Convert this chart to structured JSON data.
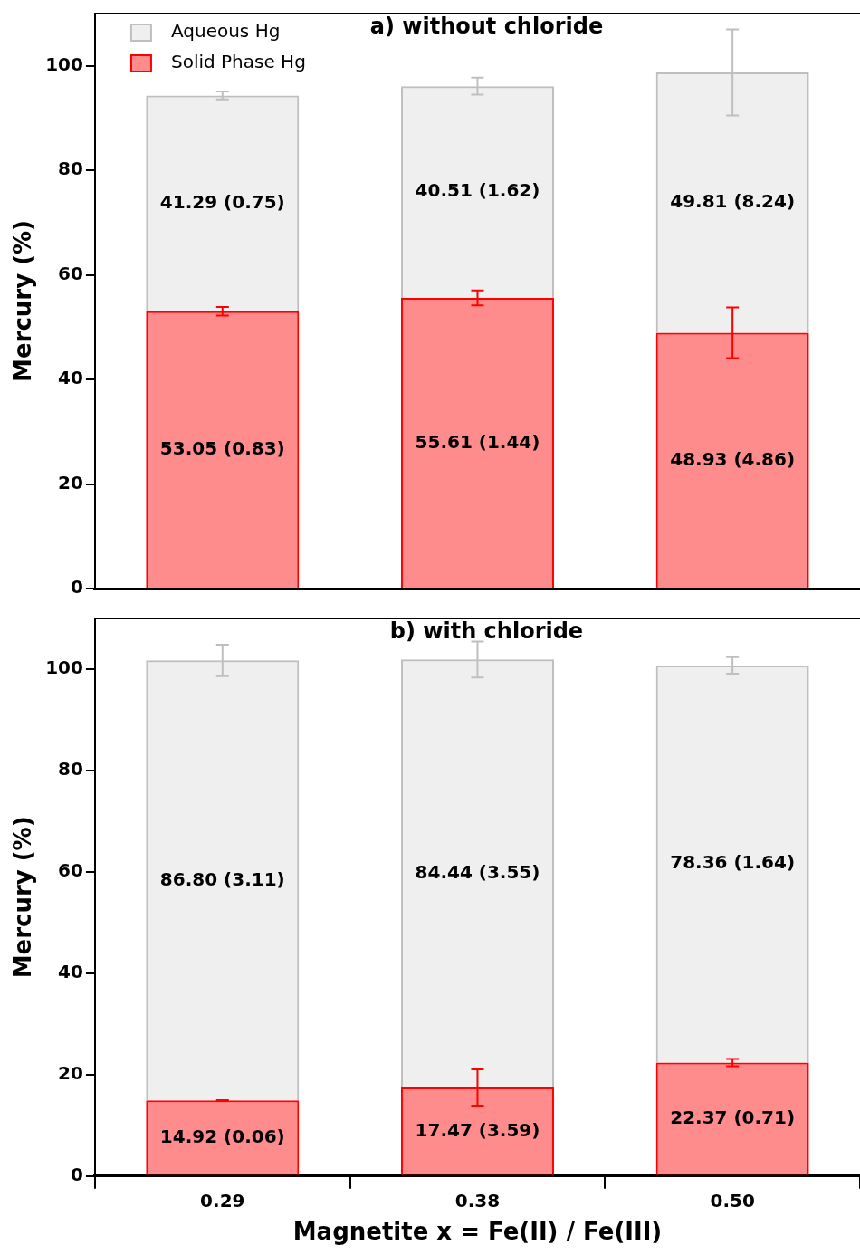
{
  "chart_data": [
    {
      "type": "bar",
      "stacked": true,
      "title": "a) without chloride",
      "ylabel": "Mercury (%)",
      "categories": [
        "0.29",
        "0.38",
        "0.50"
      ],
      "ylim": [
        0,
        110
      ],
      "yticks": [
        0,
        20,
        40,
        60,
        80,
        100
      ],
      "tick_labels": "y",
      "legend": "top left",
      "series": [
        {
          "name": "Solid Phase Hg",
          "color": "#ff0000",
          "values": [
            53.05,
            55.61,
            48.93
          ],
          "errors": [
            0.83,
            1.44,
            4.86
          ],
          "value_labels": [
            "53.05 (0.83)",
            "55.61 (1.44)",
            "48.93 (4.86)"
          ]
        },
        {
          "name": "Aqueous Hg",
          "color": "#bfbfbf",
          "values": [
            41.29,
            40.51,
            49.81
          ],
          "errors": [
            0.75,
            1.62,
            8.24
          ],
          "value_labels": [
            "41.29 (0.75)",
            "40.51 (1.62)",
            "49.81 (8.24)"
          ]
        }
      ]
    },
    {
      "type": "bar",
      "stacked": true,
      "title": "b) with chloride",
      "ylabel": "Mercury (%)",
      "xlabel": "Magnetite x = Fe(II) / Fe(III)",
      "categories": [
        "0.29",
        "0.38",
        "0.50"
      ],
      "ylim": [
        0,
        110
      ],
      "yticks": [
        0,
        20,
        40,
        60,
        80,
        100
      ],
      "series": [
        {
          "color": "#ff0000",
          "values": [
            14.92,
            17.47,
            22.37
          ],
          "errors": [
            0.06,
            3.59,
            0.71
          ],
          "value_labels": [
            "14.92 (0.06)",
            "17.47 (3.59)",
            "22.37 (0.71)"
          ]
        },
        {
          "color": "#bfbfbf",
          "values": [
            86.8,
            84.44,
            78.36
          ],
          "errors": [
            3.11,
            3.55,
            1.64
          ],
          "value_labels": [
            "86.80 (3.11)",
            "84.44 (3.55)",
            "78.36 (1.64)"
          ]
        }
      ]
    }
  ]
}
